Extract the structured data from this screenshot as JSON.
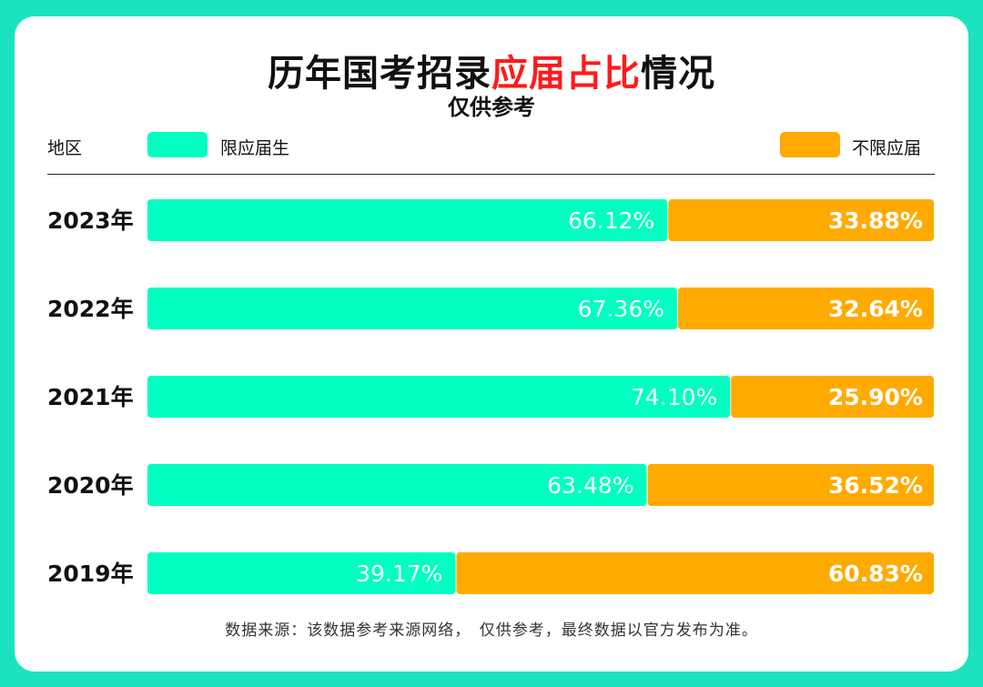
{
  "title": {
    "part1": "历年国考招录",
    "highlight": "应届占比",
    "part2": "情况"
  },
  "subtitle": "仅供参考",
  "legend": {
    "region_label": "地区",
    "series1_label": "限应届生",
    "series2_label": "不限应届"
  },
  "colors": {
    "series1": "#00ffc0",
    "series2": "#ffaa00",
    "title_highlight": "#ff1a1a"
  },
  "source": "数据来源：该数据参考来源网络，　仅供参考，最终数据以官方发布为准。",
  "chart_data": {
    "type": "bar",
    "orientation": "horizontal",
    "stacked": true,
    "categories": [
      "2023年",
      "2022年",
      "2021年",
      "2020年",
      "2019年"
    ],
    "series": [
      {
        "name": "限应届生",
        "values": [
          66.12,
          67.36,
          74.1,
          63.48,
          39.17
        ]
      },
      {
        "name": "不限应届",
        "values": [
          33.88,
          32.64,
          25.9,
          36.52,
          60.83
        ]
      }
    ],
    "value_labels": {
      "series1": [
        "66.12%",
        "67.36%",
        "74.10%",
        "63.48%",
        "39.17%"
      ],
      "series2": [
        "33.88%",
        "32.64%",
        "25.90%",
        "36.52%",
        "60.83%"
      ]
    },
    "xlim": [
      0,
      100
    ],
    "grid": false,
    "legend_position": "top"
  }
}
